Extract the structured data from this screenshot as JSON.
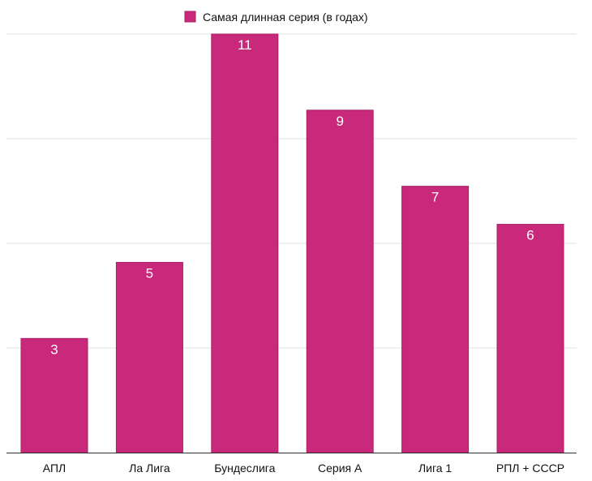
{
  "chart_data": {
    "type": "bar",
    "categories": [
      "АПЛ",
      "Ла Лига",
      "Бундеслига",
      "Серия А",
      "Лига 1",
      "РПЛ + СССР"
    ],
    "series": [
      {
        "name": "Самая длинная серия (в годах)",
        "values": [
          3,
          5,
          11,
          9,
          7,
          6
        ],
        "color": "#c9297a",
        "border_color": "#a81f64"
      }
    ],
    "title": "",
    "xlabel": "",
    "ylabel": "",
    "ylim": [
      0,
      11
    ],
    "grid": true,
    "legend_position": "top-center",
    "data_labels": true
  }
}
